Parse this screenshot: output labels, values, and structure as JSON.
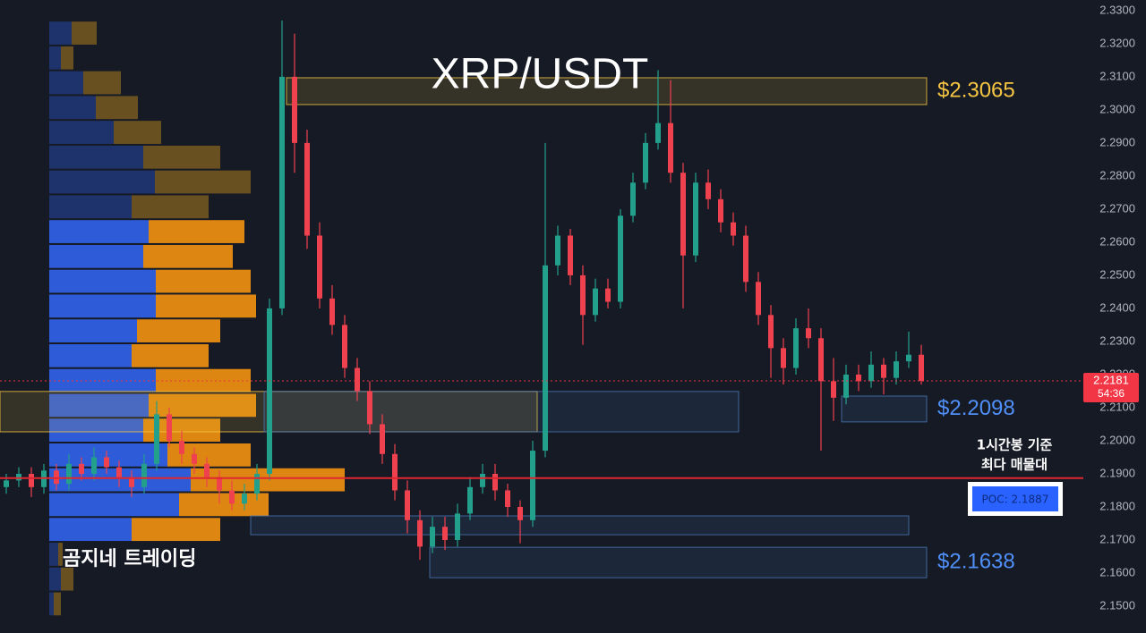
{
  "chart_data": {
    "type": "candlestick",
    "title": "XRP/USDT",
    "watermark": "곰지네 트레이딩",
    "ylim": [
      2.1419,
      2.3332
    ],
    "yticks": [
      {
        "value": 2.15,
        "label": "2.1500"
      },
      {
        "value": 2.16,
        "label": "2.1600"
      },
      {
        "value": 2.17,
        "label": "2.1700"
      },
      {
        "value": 2.18,
        "label": "2.1800"
      },
      {
        "value": 2.19,
        "label": "2.1900"
      },
      {
        "value": 2.2,
        "label": "2.2000"
      },
      {
        "value": 2.21,
        "label": "2.2100"
      },
      {
        "value": 2.22,
        "label": "2.2200"
      },
      {
        "value": 2.23,
        "label": "2.2300"
      },
      {
        "value": 2.24,
        "label": "2.2400"
      },
      {
        "value": 2.25,
        "label": "2.2500"
      },
      {
        "value": 2.26,
        "label": "2.2600"
      },
      {
        "value": 2.27,
        "label": "2.2700"
      },
      {
        "value": 2.28,
        "label": "2.2800"
      },
      {
        "value": 2.29,
        "label": "2.2900"
      },
      {
        "value": 2.3,
        "label": "2.3000"
      },
      {
        "value": 2.31,
        "label": "2.3100"
      },
      {
        "value": 2.32,
        "label": "2.3200"
      },
      {
        "value": 2.33,
        "label": "2.3300"
      }
    ],
    "grid": true,
    "up_color": "#22a08c",
    "down_color": "#f0414f",
    "candles": [
      [
        2.186,
        2.19,
        2.184,
        2.188
      ],
      [
        2.188,
        2.192,
        2.186,
        2.19
      ],
      [
        2.19,
        2.192,
        2.183,
        2.186
      ],
      [
        2.186,
        2.193,
        2.184,
        2.191
      ],
      [
        2.191,
        2.193,
        2.185,
        2.187
      ],
      [
        2.187,
        2.196,
        2.185,
        2.193
      ],
      [
        2.193,
        2.195,
        2.188,
        2.19
      ],
      [
        2.19,
        2.198,
        2.188,
        2.195
      ],
      [
        2.195,
        2.197,
        2.19,
        2.192
      ],
      [
        2.192,
        2.194,
        2.186,
        2.189
      ],
      [
        2.189,
        2.191,
        2.183,
        2.186
      ],
      [
        2.186,
        2.196,
        2.184,
        2.193
      ],
      [
        2.193,
        2.212,
        2.191,
        2.208
      ],
      [
        2.208,
        2.21,
        2.198,
        2.2
      ],
      [
        2.2,
        2.203,
        2.193,
        2.196
      ],
      [
        2.196,
        2.198,
        2.19,
        2.193
      ],
      [
        2.193,
        2.195,
        2.186,
        2.189
      ],
      [
        2.189,
        2.191,
        2.181,
        2.185
      ],
      [
        2.185,
        2.188,
        2.179,
        2.181
      ],
      [
        2.181,
        2.187,
        2.179,
        2.184
      ],
      [
        2.184,
        2.193,
        2.182,
        2.19
      ],
      [
        2.19,
        2.243,
        2.188,
        2.24
      ],
      [
        2.24,
        2.327,
        2.238,
        2.31
      ],
      [
        2.31,
        2.323,
        2.281,
        2.29
      ],
      [
        2.29,
        2.294,
        2.258,
        2.262
      ],
      [
        2.262,
        2.266,
        2.24,
        2.243
      ],
      [
        2.243,
        2.247,
        2.232,
        2.235
      ],
      [
        2.235,
        2.238,
        2.219,
        2.222
      ],
      [
        2.222,
        2.225,
        2.212,
        2.215
      ],
      [
        2.215,
        2.218,
        2.202,
        2.205
      ],
      [
        2.205,
        2.208,
        2.193,
        2.196
      ],
      [
        2.196,
        2.199,
        2.182,
        2.185
      ],
      [
        2.185,
        2.188,
        2.172,
        2.176
      ],
      [
        2.176,
        2.179,
        2.164,
        2.168
      ],
      [
        2.168,
        2.177,
        2.166,
        2.174
      ],
      [
        2.174,
        2.177,
        2.167,
        2.17
      ],
      [
        2.17,
        2.181,
        2.168,
        2.178
      ],
      [
        2.178,
        2.189,
        2.176,
        2.186
      ],
      [
        2.186,
        2.193,
        2.184,
        2.19
      ],
      [
        2.19,
        2.193,
        2.182,
        2.185
      ],
      [
        2.185,
        2.187,
        2.177,
        2.18
      ],
      [
        2.18,
        2.182,
        2.169,
        2.176
      ],
      [
        2.176,
        2.2,
        2.174,
        2.197
      ],
      [
        2.197,
        2.29,
        2.195,
        2.253
      ],
      [
        2.253,
        2.265,
        2.25,
        2.262
      ],
      [
        2.262,
        2.264,
        2.247,
        2.25
      ],
      [
        2.25,
        2.253,
        2.229,
        2.238
      ],
      [
        2.238,
        2.249,
        2.236,
        2.246
      ],
      [
        2.246,
        2.249,
        2.24,
        2.242
      ],
      [
        2.242,
        2.27,
        2.24,
        2.268
      ],
      [
        2.268,
        2.281,
        2.266,
        2.278
      ],
      [
        2.278,
        2.293,
        2.276,
        2.29
      ],
      [
        2.29,
        2.312,
        2.288,
        2.296
      ],
      [
        2.296,
        2.309,
        2.278,
        2.281
      ],
      [
        2.281,
        2.284,
        2.24,
        2.256
      ],
      [
        2.256,
        2.281,
        2.254,
        2.278
      ],
      [
        2.278,
        2.282,
        2.27,
        2.273
      ],
      [
        2.273,
        2.276,
        2.263,
        2.266
      ],
      [
        2.266,
        2.269,
        2.259,
        2.262
      ],
      [
        2.262,
        2.265,
        2.245,
        2.248
      ],
      [
        2.248,
        2.251,
        2.235,
        2.238
      ],
      [
        2.238,
        2.241,
        2.219,
        2.228
      ],
      [
        2.228,
        2.231,
        2.217,
        2.222
      ],
      [
        2.222,
        2.237,
        2.22,
        2.234
      ],
      [
        2.234,
        2.24,
        2.228,
        2.231
      ],
      [
        2.231,
        2.234,
        2.197,
        2.218
      ],
      [
        2.218,
        2.225,
        2.206,
        2.213
      ],
      [
        2.213,
        2.223,
        2.211,
        2.22
      ],
      [
        2.22,
        2.223,
        2.215,
        2.218
      ],
      [
        2.218,
        2.227,
        2.216,
        2.223
      ],
      [
        2.223,
        2.225,
        2.214,
        2.219
      ],
      [
        2.219,
        2.227,
        2.217,
        2.224
      ],
      [
        2.224,
        2.233,
        2.222,
        2.226
      ],
      [
        2.226,
        2.229,
        2.217,
        2.2181
      ]
    ],
    "volume_profile": {
      "prices": [
        2.3232,
        2.3157,
        2.3082,
        2.3007,
        2.2932,
        2.2857,
        2.2782,
        2.2707,
        2.2632,
        2.2557,
        2.2482,
        2.2407,
        2.2332,
        2.2257,
        2.2182,
        2.2107,
        2.2032,
        2.1957,
        2.1882,
        2.1807,
        2.1732,
        2.1657,
        2.1582,
        2.1507
      ],
      "buy": [
        25,
        13,
        38,
        52,
        72,
        105,
        118,
        92,
        111,
        105,
        119,
        119,
        98,
        92,
        119,
        111,
        105,
        132,
        158,
        145,
        92,
        10,
        13,
        5
      ],
      "sell": [
        28,
        14,
        42,
        47,
        53,
        86,
        107,
        86,
        107,
        100,
        106,
        112,
        93,
        86,
        106,
        120,
        86,
        93,
        172,
        100,
        99,
        5,
        14,
        8
      ],
      "value_area": [
        2.1732,
        2.2632
      ],
      "buy_color": "#2f5fe0",
      "sell_color": "#e88c10",
      "buy_color_outside": "#1f3570",
      "sell_color_outside": "#6e5320"
    },
    "zones": [
      {
        "top": 2.3097,
        "bottom": 2.3016,
        "color": "#f5c542",
        "label": "$2.3065"
      },
      {
        "top": 2.2149,
        "bottom": 2.2027,
        "color": "#f5c542"
      },
      {
        "top": 2.2149,
        "bottom": 2.2027,
        "color": "#4a78b5"
      },
      {
        "top": 2.2135,
        "bottom": 2.2057,
        "color": "#4a78b5",
        "label": "$2.2098"
      },
      {
        "top": 2.1773,
        "bottom": 2.1716,
        "color": "#4a78b5"
      },
      {
        "top": 2.1678,
        "bottom": 2.1586,
        "color": "#4a78b5",
        "label": "$2.1638"
      }
    ],
    "poc": {
      "value": 2.1887,
      "label": "POC: 2.1887",
      "color": "#e0262f"
    },
    "annotation": [
      "1시간봉 기준",
      "최다 매물대"
    ],
    "current_price": {
      "value": 2.2181,
      "countdown": "54:36",
      "color": "#f23645"
    }
  }
}
